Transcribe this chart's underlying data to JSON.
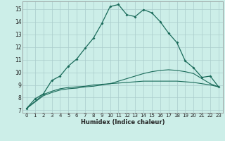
{
  "xlabel": "Humidex (Indice chaleur)",
  "bg_color": "#cceee8",
  "grid_color": "#aacccc",
  "line_color": "#1a6b5a",
  "xlim": [
    -0.5,
    23.5
  ],
  "ylim": [
    6.8,
    15.6
  ],
  "xticks": [
    0,
    1,
    2,
    3,
    4,
    5,
    6,
    7,
    8,
    9,
    10,
    11,
    12,
    13,
    14,
    15,
    16,
    17,
    18,
    19,
    20,
    21,
    22,
    23
  ],
  "yticks": [
    7,
    8,
    9,
    10,
    11,
    12,
    13,
    14,
    15
  ],
  "curve1_x": [
    0,
    1,
    2,
    3,
    4,
    5,
    6,
    7,
    8,
    9,
    10,
    11,
    12,
    13,
    14,
    15,
    16,
    17,
    18,
    19,
    20,
    21,
    22,
    23
  ],
  "curve1_y": [
    7.15,
    7.9,
    8.3,
    9.35,
    9.7,
    10.5,
    11.05,
    11.9,
    12.7,
    13.85,
    15.2,
    15.35,
    14.55,
    14.4,
    14.95,
    14.7,
    14.0,
    13.1,
    12.35,
    10.9,
    10.35,
    9.6,
    9.7,
    8.85
  ],
  "curve2_x": [
    0,
    2,
    3,
    4,
    5,
    6,
    7,
    8,
    9,
    10,
    11,
    12,
    13,
    14,
    15,
    16,
    17,
    18,
    19,
    20,
    21,
    22,
    23
  ],
  "curve2_y": [
    7.15,
    8.25,
    8.5,
    8.7,
    8.8,
    8.85,
    8.9,
    9.0,
    9.05,
    9.1,
    9.15,
    9.2,
    9.25,
    9.3,
    9.3,
    9.3,
    9.3,
    9.3,
    9.25,
    9.2,
    9.1,
    9.0,
    8.85
  ],
  "curve3_x": [
    0,
    2,
    3,
    4,
    5,
    6,
    7,
    8,
    9,
    10,
    11,
    12,
    13,
    14,
    15,
    16,
    17,
    18,
    19,
    20,
    21,
    22,
    23
  ],
  "curve3_y": [
    7.15,
    8.15,
    8.4,
    8.6,
    8.7,
    8.75,
    8.85,
    8.9,
    9.0,
    9.1,
    9.3,
    9.5,
    9.7,
    9.9,
    10.05,
    10.15,
    10.2,
    10.15,
    10.05,
    9.9,
    9.5,
    9.1,
    8.85
  ]
}
